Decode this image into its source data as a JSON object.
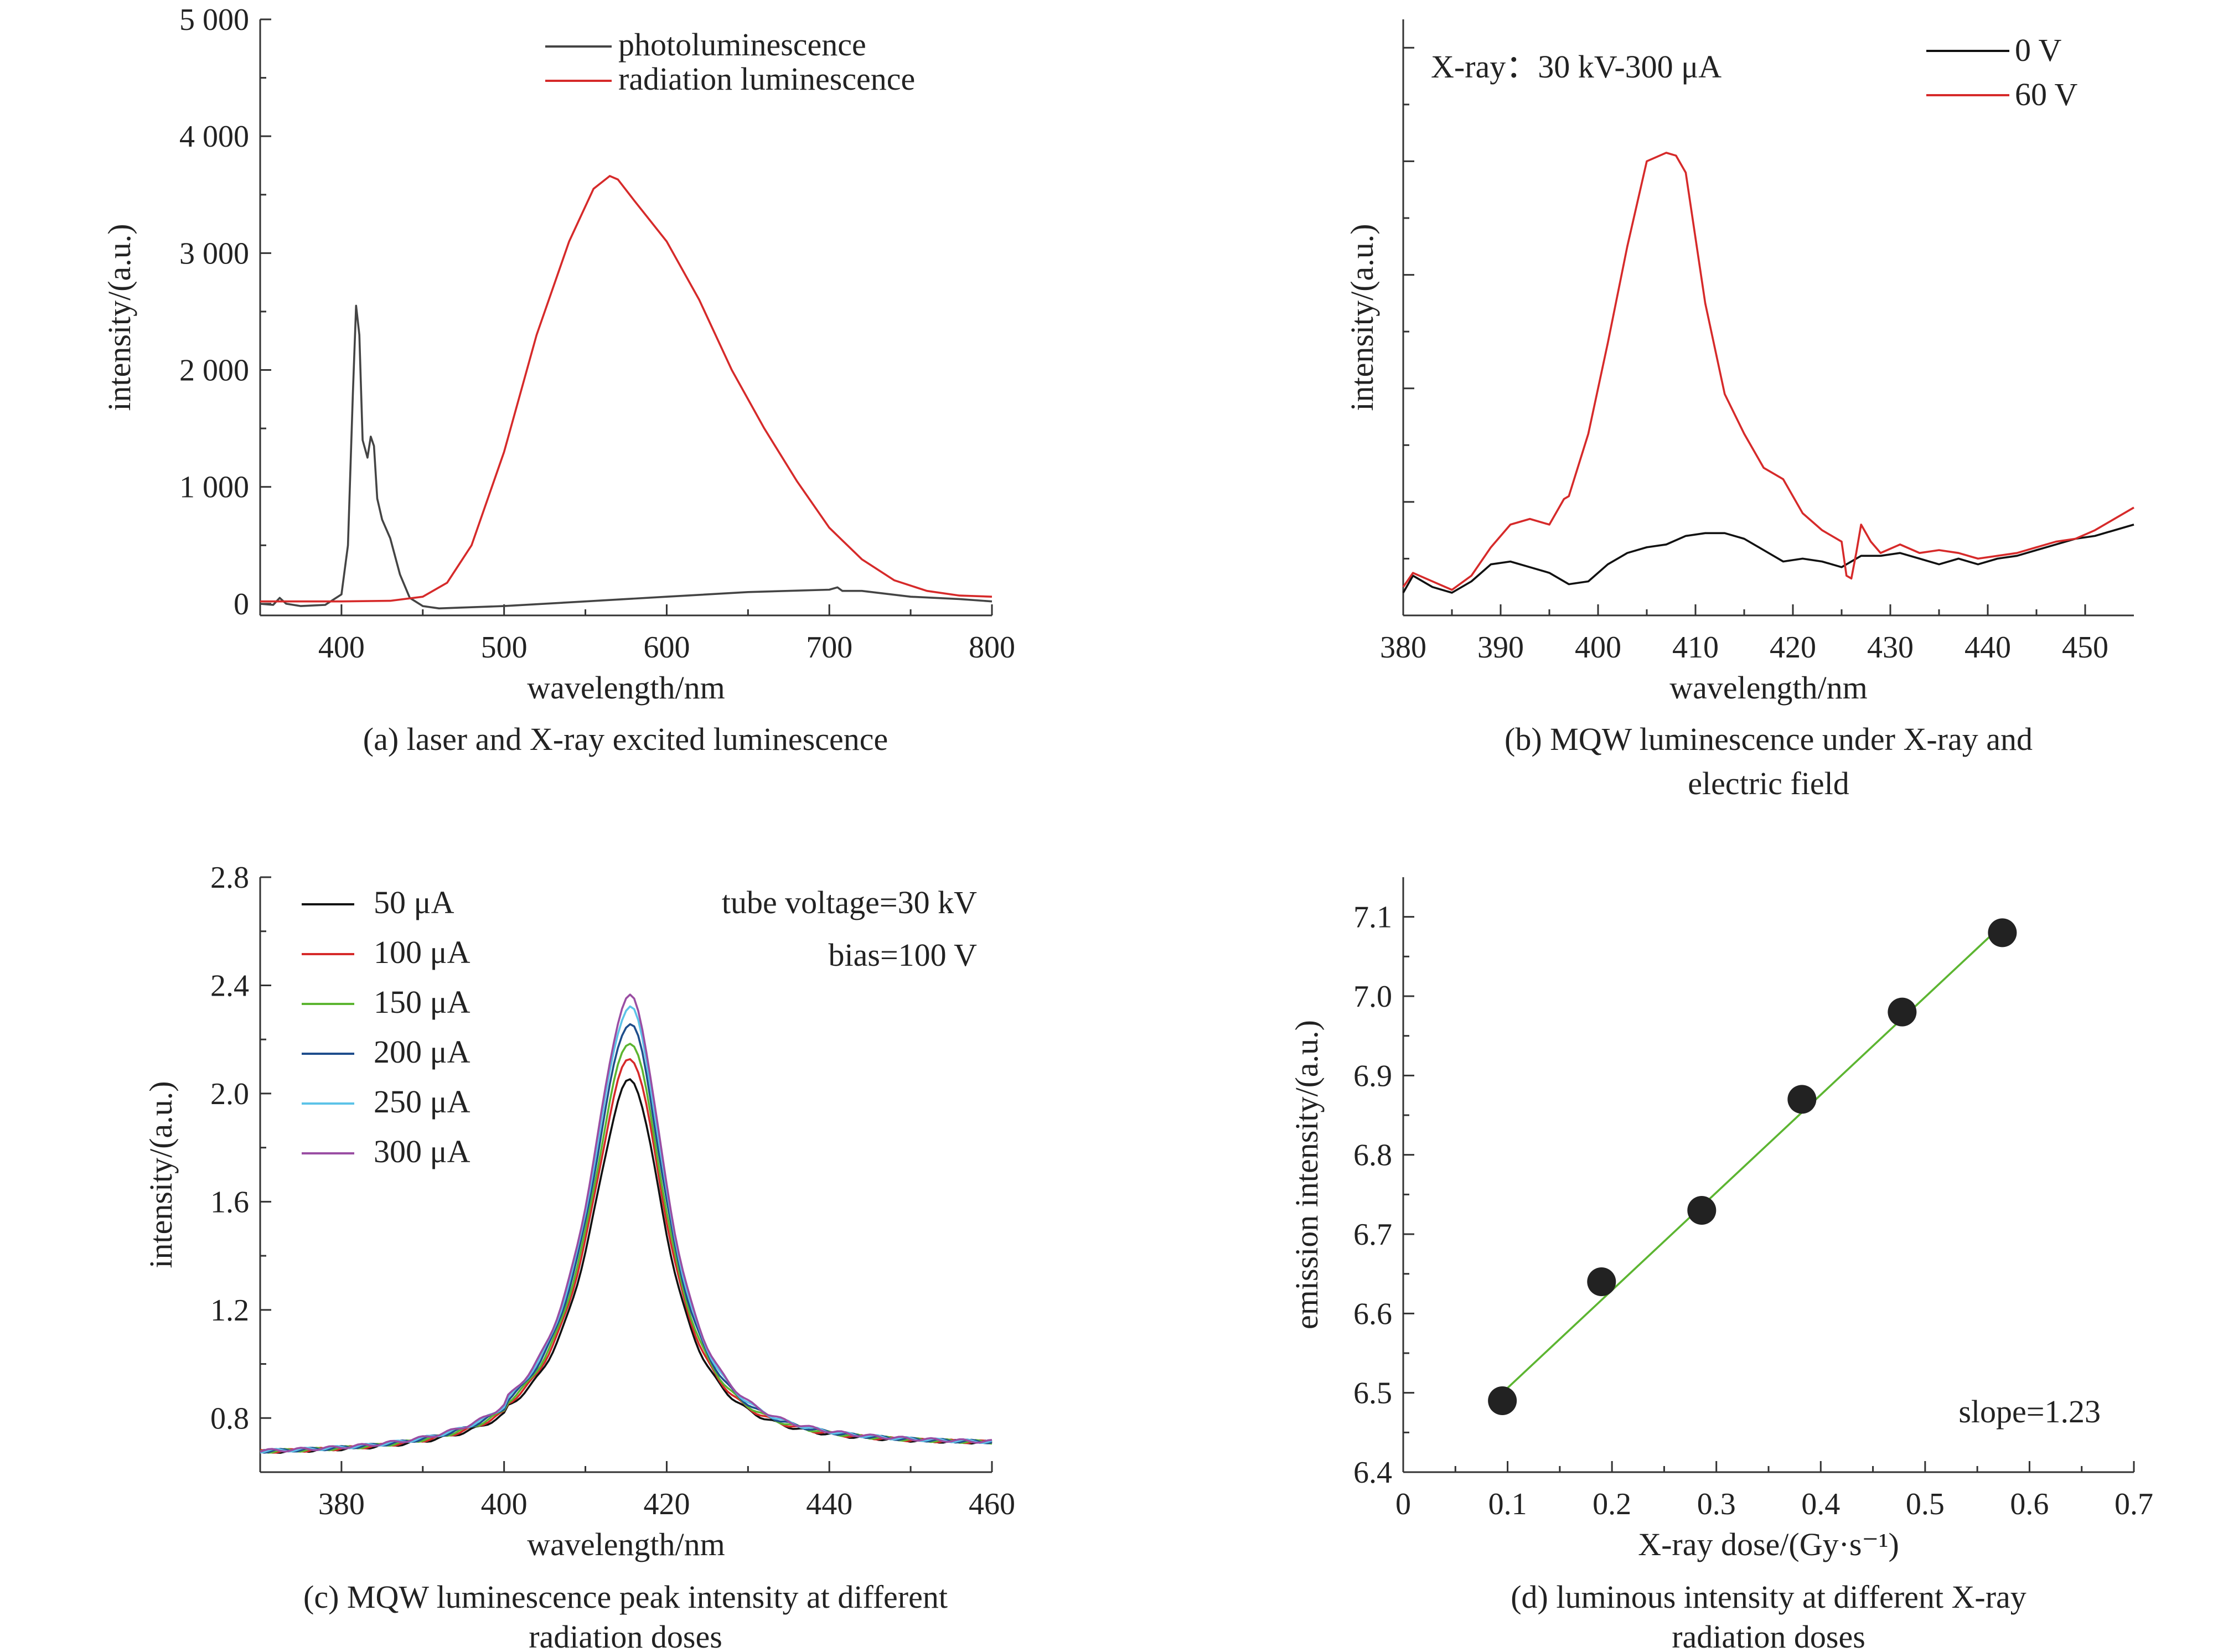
{
  "chart_data": [
    {
      "id": "a",
      "type": "line",
      "caption": "(a) laser and X-ray excited luminescence",
      "xlabel": "wavelength/nm",
      "ylabel": "intensity/(a.u.)",
      "xlim": [
        350,
        800
      ],
      "ylim": [
        -100,
        5000
      ],
      "xticks": [
        400,
        500,
        600,
        700,
        800
      ],
      "xtick_labels": [
        "400",
        "500",
        "600",
        "700",
        "800"
      ],
      "yticks": [
        0,
        1000,
        2000,
        3000,
        4000,
        5000
      ],
      "ytick_labels": [
        "0",
        "1 000",
        "2 000",
        "3 000",
        "4 000",
        "5 000"
      ],
      "legend_position": "top-right",
      "series": [
        {
          "name": "photoluminescence",
          "color": "#444444",
          "x": [
            350,
            358,
            362,
            366,
            375,
            390,
            400,
            404,
            407,
            409,
            411,
            413,
            416,
            418,
            420,
            422,
            425,
            430,
            436,
            442,
            450,
            460,
            480,
            500,
            550,
            600,
            650,
            700,
            705,
            708,
            720,
            750,
            780,
            800
          ],
          "y": [
            0,
            -10,
            50,
            0,
            -20,
            -10,
            80,
            500,
            1800,
            2550,
            2300,
            1400,
            1250,
            1430,
            1350,
            900,
            720,
            560,
            250,
            50,
            -20,
            -40,
            -30,
            -20,
            20,
            60,
            100,
            120,
            140,
            110,
            110,
            60,
            40,
            20
          ]
        },
        {
          "name": "radiation luminescence",
          "color": "#d62a2a",
          "x": [
            350,
            400,
            430,
            450,
            465,
            480,
            500,
            520,
            540,
            555,
            565,
            570,
            580,
            600,
            620,
            640,
            660,
            680,
            700,
            720,
            740,
            760,
            780,
            800
          ],
          "y": [
            20,
            20,
            25,
            60,
            180,
            500,
            1300,
            2300,
            3100,
            3550,
            3660,
            3630,
            3450,
            3100,
            2600,
            2000,
            1500,
            1050,
            650,
            380,
            200,
            110,
            70,
            60
          ]
        }
      ]
    },
    {
      "id": "b",
      "type": "line",
      "caption_lines": [
        "(b) MQW luminescence under X-ray and",
        "electric field"
      ],
      "xlabel": "wavelength/nm",
      "ylabel": "intensity/(a.u.)",
      "annotation": "X-ray：30 kV-300 μA",
      "xlim": [
        380,
        455
      ],
      "ylim": [
        0,
        10.5
      ],
      "xticks": [
        380,
        390,
        400,
        410,
        420,
        430,
        440,
        450
      ],
      "xtick_labels": [
        "380",
        "390",
        "400",
        "410",
        "420",
        "430",
        "440",
        "450"
      ],
      "yticks": [
        2,
        4,
        6,
        8,
        10
      ],
      "ytick_labels": [
        "",
        "",
        "",
        "",
        ""
      ],
      "legend_position": "top-right",
      "series": [
        {
          "name": "0 V",
          "color": "#111111",
          "x": [
            380,
            381,
            383,
            385,
            387,
            389,
            391,
            393,
            395,
            397,
            399,
            401,
            403,
            405,
            407,
            409,
            411,
            413,
            415,
            417,
            419,
            421,
            423,
            425,
            427,
            429,
            431,
            433,
            435,
            437,
            439,
            441,
            443,
            445,
            447,
            449,
            451,
            453,
            455
          ],
          "y": [
            0.4,
            0.7,
            0.5,
            0.4,
            0.6,
            0.9,
            0.95,
            0.85,
            0.75,
            0.55,
            0.6,
            0.9,
            1.1,
            1.2,
            1.25,
            1.4,
            1.45,
            1.45,
            1.35,
            1.15,
            0.95,
            1.0,
            0.95,
            0.85,
            1.05,
            1.05,
            1.1,
            1.0,
            0.9,
            1.0,
            0.9,
            1.0,
            1.05,
            1.15,
            1.25,
            1.35,
            1.4,
            1.5,
            1.6
          ]
        },
        {
          "name": "60 V",
          "color": "#d62a2a",
          "x": [
            380,
            381,
            383,
            385,
            387,
            389,
            391,
            393,
            395,
            396,
            396.5,
            397,
            399,
            401,
            403,
            405,
            407,
            408,
            409,
            411,
            413,
            415,
            417,
            419,
            421,
            423,
            425,
            425.5,
            426,
            426.5,
            427,
            428,
            429,
            431,
            433,
            435,
            437,
            439,
            441,
            443,
            445,
            447,
            449,
            451,
            453,
            455
          ],
          "y": [
            0.5,
            0.75,
            0.6,
            0.45,
            0.7,
            1.2,
            1.6,
            1.7,
            1.6,
            1.9,
            2.05,
            2.1,
            3.2,
            4.8,
            6.5,
            8.0,
            8.15,
            8.1,
            7.8,
            5.5,
            3.9,
            3.2,
            2.6,
            2.4,
            1.8,
            1.5,
            1.3,
            0.7,
            0.65,
            1.1,
            1.6,
            1.3,
            1.1,
            1.25,
            1.1,
            1.15,
            1.1,
            1.0,
            1.05,
            1.1,
            1.2,
            1.3,
            1.35,
            1.5,
            1.7,
            1.9
          ]
        }
      ]
    },
    {
      "id": "c",
      "type": "line",
      "caption_lines": [
        "(c) MQW luminescence peak intensity at different",
        "radiation doses"
      ],
      "xlabel": "wavelength/nm",
      "ylabel": "intensity/(a.u.)",
      "annotations": [
        "tube voltage=30 kV",
        "bias=100 V"
      ],
      "xlim": [
        370,
        460
      ],
      "ylim": [
        0.6,
        2.8
      ],
      "xticks": [
        380,
        400,
        420,
        440,
        460
      ],
      "xtick_labels": [
        "380",
        "400",
        "420",
        "440",
        "460"
      ],
      "yticks": [
        0.8,
        1.2,
        1.6,
        2.0,
        2.4,
        2.8
      ],
      "ytick_labels": [
        "0.8",
        "1.2",
        "1.6",
        "2.0",
        "2.4",
        "2.8"
      ],
      "legend_position": "top-left",
      "peak_center": 415.5,
      "baseline": 0.66,
      "series": [
        {
          "name": "50 μA",
          "color": "#111111",
          "peak": 2.03
        },
        {
          "name": "100 μA",
          "color": "#d62a2a",
          "peak": 2.11
        },
        {
          "name": "150 μA",
          "color": "#5cb531",
          "peak": 2.17
        },
        {
          "name": "200 μA",
          "color": "#1f4e8c",
          "peak": 2.24
        },
        {
          "name": "250 μA",
          "color": "#5cc3e8",
          "peak": 2.3
        },
        {
          "name": "300 μA",
          "color": "#9a4ea3",
          "peak": 2.34
        }
      ]
    },
    {
      "id": "d",
      "type": "scatter",
      "caption_lines": [
        "(d) luminous intensity at different X-ray",
        "radiation doses"
      ],
      "xlabel": "X-ray dose/(Gy·s⁻¹)",
      "ylabel": "emission intensity/(a.u.)",
      "annotation": "slope=1.23",
      "xlim": [
        0,
        0.7
      ],
      "ylim": [
        6.4,
        7.15
      ],
      "xticks": [
        0,
        0.1,
        0.2,
        0.3,
        0.4,
        0.5,
        0.6,
        0.7
      ],
      "xtick_labels": [
        "0",
        "0.1",
        "0.2",
        "0.3",
        "0.4",
        "0.5",
        "0.6",
        "0.7"
      ],
      "yticks": [
        6.4,
        6.5,
        6.6,
        6.7,
        6.8,
        6.9,
        7.0,
        7.1
      ],
      "ytick_labels": [
        "6.4",
        "6.5",
        "6.6",
        "6.7",
        "6.8",
        "6.9",
        "7.0",
        "7.1"
      ],
      "points": {
        "x": [
          0.095,
          0.19,
          0.286,
          0.382,
          0.478,
          0.574
        ],
        "y": [
          6.49,
          6.64,
          6.73,
          6.87,
          6.98,
          7.08
        ]
      },
      "fit": {
        "x": [
          0.095,
          0.574
        ],
        "y": [
          6.5,
          7.09
        ],
        "color": "#5cb531"
      },
      "marker_color": "#222222"
    }
  ]
}
